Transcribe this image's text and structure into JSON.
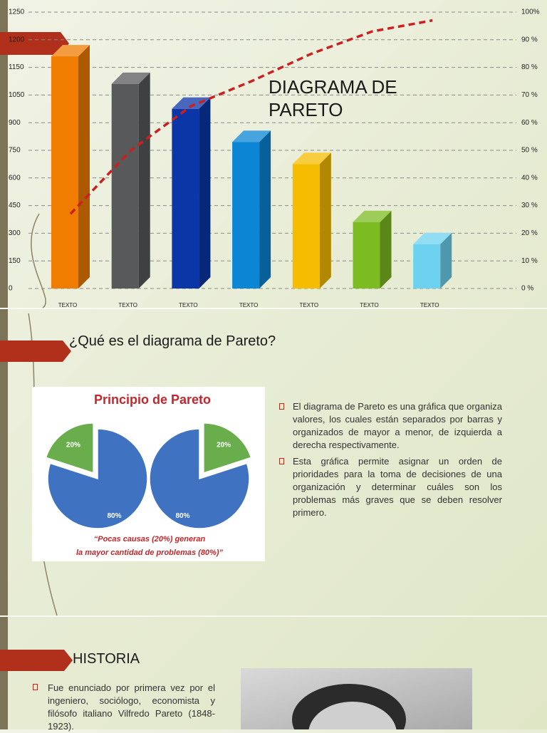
{
  "chart_data": {
    "type": "bar",
    "title": "DIAGRAMA DE PARETO",
    "categories": [
      "TEXTO",
      "TEXTO",
      "TEXTO",
      "TEXTO",
      "TEXTO",
      "TEXTO",
      "TEXTO"
    ],
    "values": [
      84,
      74,
      65,
      53,
      45,
      24,
      16
    ],
    "colors": [
      "#f07c00",
      "#58595b",
      "#0b36a8",
      "#0a86d4",
      "#f6bd00",
      "#7dbb22",
      "#6dd2f0"
    ],
    "cumulative": {
      "type": "line",
      "values": [
        27,
        50,
        66,
        75,
        85,
        93,
        97
      ],
      "color": "#cc1f1f"
    },
    "ylim": [
      0,
      100
    ],
    "yticks": [
      {
        "value": 0,
        "label": "0 %"
      },
      {
        "value": 10,
        "label": "10 %"
      },
      {
        "value": 20,
        "label": "20 %"
      },
      {
        "value": 30,
        "label": "30 %"
      },
      {
        "value": 40,
        "label": "40 %"
      },
      {
        "value": 50,
        "label": "50 %"
      },
      {
        "value": 60,
        "label": "60 %"
      },
      {
        "value": 70,
        "label": "70 %"
      },
      {
        "value": 80,
        "label": "80 %"
      },
      {
        "value": 90,
        "label": "90 %"
      },
      {
        "value": 100,
        "label": "100%"
      }
    ],
    "left_axis_labels": [
      "0",
      "150",
      "300",
      "450",
      "600",
      "750",
      "900",
      "1050",
      "1150",
      "1200",
      "1250"
    ],
    "grid": true
  },
  "slide2": {
    "title": "¿Qué es el diagrama de Pareto?",
    "image": {
      "type": "pie",
      "title": "Principio de Pareto",
      "values": [
        20,
        80
      ],
      "value_labels": [
        "20%",
        "80%"
      ],
      "colors": [
        "#6aad4c",
        "#3f73c2"
      ],
      "caption": [
        "“Pocas causas (20%) generan",
        "la mayor cantidad de problemas (80%)”"
      ]
    },
    "bullets": [
      "El diagrama de Pareto es una gráfica que organiza valores, los cuales están separados por barras y organizados de mayor a menor, de izquierda a derecha respectivamente.",
      "Esta gráfica permite asignar un orden de prioridades para la toma de decisiones de una organización y determinar cuáles son los problemas más graves que se deben resolver primero."
    ]
  },
  "slide3": {
    "title": "HISTORIA",
    "bullets": [
      "Fue enunciado por primera vez por el ingeniero, sociólogo, economista y filósofo italiano Vilfredo Pareto (1848-1923)."
    ]
  }
}
